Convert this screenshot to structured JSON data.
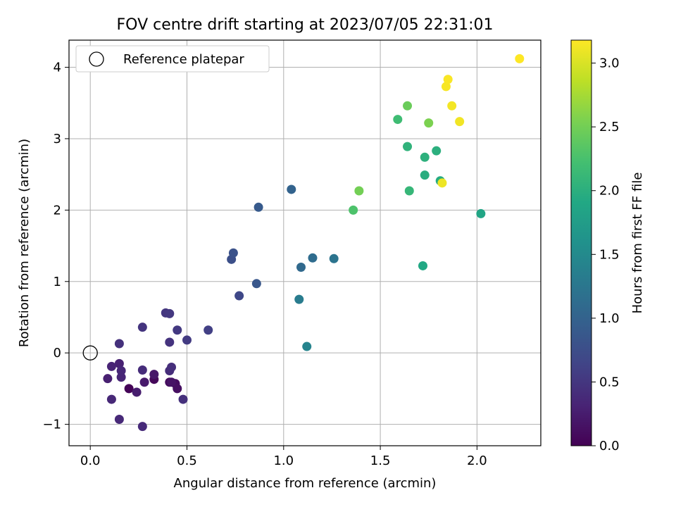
{
  "chart_data": {
    "type": "scatter",
    "title": "FOV centre drift starting at 2023/07/05 22:31:01",
    "xlabel": "Angular distance from reference (arcmin)",
    "ylabel": "Rotation from reference (arcmin)",
    "xlim": [
      -0.11,
      2.33
    ],
    "ylim": [
      -1.3,
      4.38
    ],
    "xticks": [
      0.0,
      0.5,
      1.0,
      1.5,
      2.0
    ],
    "xtick_labels": [
      "0.0",
      "0.5",
      "1.0",
      "1.5",
      "2.0"
    ],
    "yticks": [
      -1,
      0,
      1,
      2,
      3,
      4
    ],
    "ytick_labels": [
      "−1",
      "0",
      "1",
      "2",
      "3",
      "4"
    ],
    "grid": true,
    "legend": {
      "placement": "top-left",
      "entries": [
        {
          "label": "Reference platepar",
          "marker": "open-circle"
        }
      ]
    },
    "reference_point": {
      "x": 0.0,
      "y": 0.0
    },
    "colorbar": {
      "label": "Hours from first FF file",
      "colormap": "viridis",
      "range": [
        0.0,
        3.18
      ],
      "ticks": [
        0.0,
        0.5,
        1.0,
        1.5,
        2.0,
        2.5,
        3.0
      ],
      "tick_labels": [
        "0.0",
        "0.5",
        "1.0",
        "1.5",
        "2.0",
        "2.5",
        "3.0"
      ]
    },
    "points": [
      {
        "x": 0.2,
        "y": -0.5,
        "c": 0.03
      },
      {
        "x": 0.33,
        "y": -0.37,
        "c": 0.06
      },
      {
        "x": 0.41,
        "y": -0.41,
        "c": 0.09
      },
      {
        "x": 0.44,
        "y": -0.43,
        "c": 0.11
      },
      {
        "x": 0.45,
        "y": -0.5,
        "c": 0.13
      },
      {
        "x": 0.42,
        "y": -0.41,
        "c": 0.16
      },
      {
        "x": 0.33,
        "y": -0.3,
        "c": 0.2
      },
      {
        "x": 0.28,
        "y": -0.41,
        "c": 0.22
      },
      {
        "x": 0.24,
        "y": -0.55,
        "c": 0.25
      },
      {
        "x": 0.09,
        "y": -0.36,
        "c": 0.28
      },
      {
        "x": 0.15,
        "y": -0.15,
        "c": 0.3
      },
      {
        "x": 0.11,
        "y": -0.19,
        "c": 0.32
      },
      {
        "x": 0.16,
        "y": -0.34,
        "c": 0.33
      },
      {
        "x": 0.16,
        "y": -0.25,
        "c": 0.35
      },
      {
        "x": 0.11,
        "y": -0.65,
        "c": 0.36
      },
      {
        "x": 0.15,
        "y": -0.93,
        "c": 0.37
      },
      {
        "x": 0.27,
        "y": -1.03,
        "c": 0.38
      },
      {
        "x": 0.27,
        "y": -0.24,
        "c": 0.4
      },
      {
        "x": 0.41,
        "y": -0.25,
        "c": 0.41
      },
      {
        "x": 0.42,
        "y": -0.2,
        "c": 0.43
      },
      {
        "x": 0.48,
        "y": -0.65,
        "c": 0.44
      },
      {
        "x": 0.15,
        "y": 0.13,
        "c": 0.45
      },
      {
        "x": 0.41,
        "y": 0.15,
        "c": 0.47
      },
      {
        "x": 0.27,
        "y": 0.36,
        "c": 0.48
      },
      {
        "x": 0.39,
        "y": 0.56,
        "c": 0.5
      },
      {
        "x": 0.41,
        "y": 0.55,
        "c": 0.52
      },
      {
        "x": 0.45,
        "y": 0.32,
        "c": 0.53
      },
      {
        "x": 0.5,
        "y": 0.18,
        "c": 0.55
      },
      {
        "x": 0.61,
        "y": 0.32,
        "c": 0.6
      },
      {
        "x": 0.77,
        "y": 0.8,
        "c": 0.68
      },
      {
        "x": 0.73,
        "y": 1.31,
        "c": 0.76
      },
      {
        "x": 0.74,
        "y": 1.4,
        "c": 0.8
      },
      {
        "x": 0.86,
        "y": 0.97,
        "c": 0.86
      },
      {
        "x": 0.87,
        "y": 2.04,
        "c": 0.9
      },
      {
        "x": 1.04,
        "y": 2.29,
        "c": 1.0
      },
      {
        "x": 1.09,
        "y": 1.2,
        "c": 1.08
      },
      {
        "x": 1.15,
        "y": 1.33,
        "c": 1.12
      },
      {
        "x": 1.26,
        "y": 1.32,
        "c": 1.22
      },
      {
        "x": 1.08,
        "y": 0.75,
        "c": 1.32
      },
      {
        "x": 1.12,
        "y": 0.09,
        "c": 1.42
      },
      {
        "x": 2.02,
        "y": 1.95,
        "c": 1.87
      },
      {
        "x": 1.72,
        "y": 1.22,
        "c": 1.91
      },
      {
        "x": 1.81,
        "y": 2.41,
        "c": 1.95
      },
      {
        "x": 1.73,
        "y": 2.49,
        "c": 1.98
      },
      {
        "x": 1.79,
        "y": 2.83,
        "c": 2.0
      },
      {
        "x": 1.73,
        "y": 2.74,
        "c": 2.02
      },
      {
        "x": 1.64,
        "y": 2.89,
        "c": 2.05
      },
      {
        "x": 1.65,
        "y": 2.27,
        "c": 2.1
      },
      {
        "x": 1.59,
        "y": 3.27,
        "c": 2.18
      },
      {
        "x": 1.36,
        "y": 2.0,
        "c": 2.28
      },
      {
        "x": 1.39,
        "y": 2.27,
        "c": 2.5
      },
      {
        "x": 1.64,
        "y": 3.46,
        "c": 2.45
      },
      {
        "x": 1.75,
        "y": 3.22,
        "c": 2.55
      },
      {
        "x": 1.82,
        "y": 2.38,
        "c": 3.1
      },
      {
        "x": 1.91,
        "y": 3.24,
        "c": 3.12
      },
      {
        "x": 1.87,
        "y": 3.46,
        "c": 3.13
      },
      {
        "x": 1.84,
        "y": 3.73,
        "c": 3.15
      },
      {
        "x": 1.85,
        "y": 3.83,
        "c": 3.16
      },
      {
        "x": 2.22,
        "y": 4.12,
        "c": 3.18
      }
    ]
  }
}
